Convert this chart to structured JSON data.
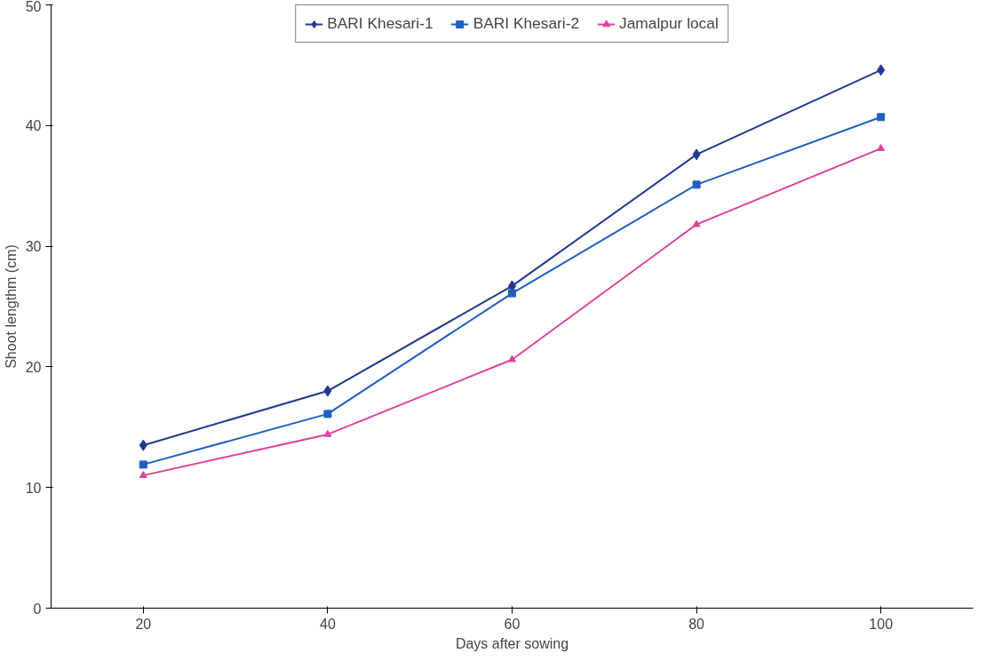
{
  "chart_data": {
    "type": "line",
    "xlabel": "Days after sowing",
    "ylabel": "Shoot lengthm (cm)",
    "categories": [
      "20",
      "40",
      "60",
      "80",
      "100"
    ],
    "series": [
      {
        "name": "BARI Khesari-1",
        "color": "#1f3a8f",
        "marker": "diamond",
        "values": [
          13.5,
          18.0,
          26.7,
          37.6,
          44.6
        ]
      },
      {
        "name": "BARI Khesari-2",
        "color": "#1f5fc0",
        "marker": "square",
        "values": [
          11.9,
          16.1,
          26.1,
          35.1,
          40.7
        ]
      },
      {
        "name": "Jamalpur local",
        "color": "#e0409a",
        "marker": "triangle",
        "values": [
          11.0,
          14.4,
          20.6,
          31.8,
          38.1
        ]
      }
    ],
    "ylim": [
      0,
      50
    ],
    "yticks": [
      0,
      10,
      20,
      30,
      40,
      50
    ],
    "grid": false,
    "legend": "top",
    "line_style": "solid"
  }
}
